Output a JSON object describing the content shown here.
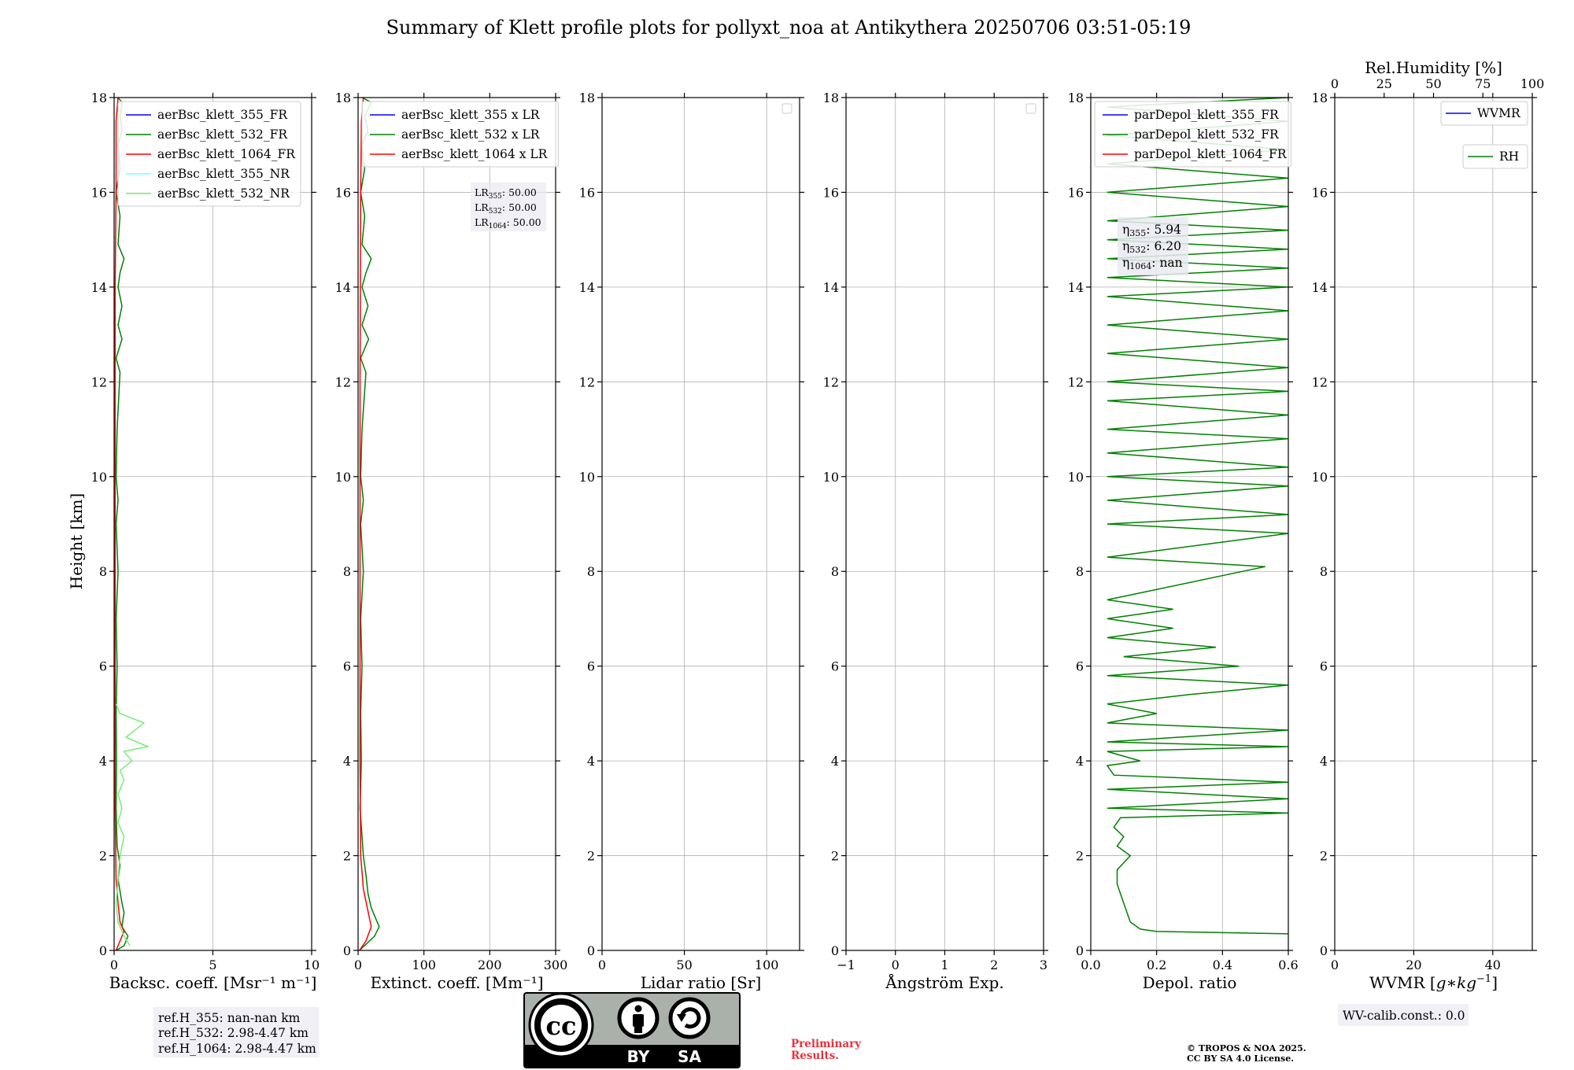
{
  "figure": {
    "title": "Summary of Klett profile plots for pollyxt_noa at Antikythera 20250706 03:51-05:19",
    "ylabel": "Height [km]"
  },
  "colors": {
    "blue": "#0000ff",
    "green": "#008000",
    "red": "#ff0000",
    "cyan": "#7fffff",
    "lightgreen": "#77ee77",
    "grid": "#b0b0b0"
  },
  "notes": {
    "ref_h": [
      "ref.H_355: nan-nan km",
      "ref.H_532: 2.98-4.47 km",
      "ref.H_1064: 2.98-4.47 km"
    ],
    "lr": [
      {
        "base": "LR",
        "sub": "355",
        "value": ": 50.00"
      },
      {
        "base": "LR",
        "sub": "532",
        "value": ": 50.00"
      },
      {
        "base": "LR",
        "sub": "1064",
        "value": ": 50.00"
      }
    ],
    "eta": [
      {
        "base": "η",
        "sub": "355",
        "value": ": 5.94"
      },
      {
        "base": "η",
        "sub": "532",
        "value": ": 6.20"
      },
      {
        "base": "η",
        "sub": "1064",
        "value": ": nan"
      }
    ],
    "wv_calib": "WV-calib.const.: 0.0",
    "preliminary": [
      "Preliminary",
      "Results."
    ],
    "copyright": [
      "© TROPOS & NOA 2025.",
      "CC BY SA 4.0 License."
    ]
  },
  "license_badge": {
    "left": "BY",
    "right": "SA",
    "logo": "cc"
  },
  "chart_data": [
    {
      "type": "line",
      "xlabel": "Backsc. coeff. [Msr⁻¹ m⁻¹]",
      "ylabel": "Height [km]",
      "xlim": [
        0,
        10
      ],
      "ylim": [
        0,
        18
      ],
      "xticks": [
        0,
        5,
        10
      ],
      "yticks": [
        0,
        2,
        4,
        6,
        8,
        10,
        12,
        14,
        16,
        18
      ],
      "grid": true,
      "legend_position": "top-left",
      "series": [
        {
          "name": "aerBsc_klett_355_FR",
          "color": "#0000ff",
          "points": []
        },
        {
          "name": "aerBsc_klett_532_FR",
          "color": "#008000",
          "points": [
            [
              0.1,
              0.0
            ],
            [
              0.5,
              0.1
            ],
            [
              0.7,
              0.3
            ],
            [
              0.4,
              0.5
            ],
            [
              0.5,
              0.8
            ],
            [
              0.4,
              1.0
            ],
            [
              0.2,
              1.5
            ],
            [
              0.3,
              1.8
            ],
            [
              0.15,
              2.2
            ],
            [
              0.1,
              3.0
            ],
            [
              0.12,
              4.0
            ],
            [
              0.1,
              5.0
            ],
            [
              0.15,
              6.0
            ],
            [
              0.1,
              7.0
            ],
            [
              0.2,
              8.0
            ],
            [
              0.1,
              9.0
            ],
            [
              0.2,
              9.5
            ],
            [
              0.1,
              10.0
            ],
            [
              0.15,
              11.0
            ],
            [
              0.3,
              12.2
            ],
            [
              0.1,
              12.5
            ],
            [
              0.4,
              12.9
            ],
            [
              0.2,
              13.2
            ],
            [
              0.4,
              13.6
            ],
            [
              0.2,
              14.0
            ],
            [
              0.3,
              14.3
            ],
            [
              0.5,
              14.6
            ],
            [
              0.2,
              14.9
            ],
            [
              0.3,
              15.5
            ],
            [
              0.1,
              16.0
            ],
            [
              0.3,
              16.5
            ],
            [
              0.2,
              17.0
            ],
            [
              0.4,
              17.3
            ],
            [
              0.3,
              17.6
            ],
            [
              0.4,
              17.9
            ],
            [
              0.2,
              18.0
            ]
          ]
        },
        {
          "name": "aerBsc_klett_1064_FR",
          "color": "#ff0000",
          "points": [
            [
              0.1,
              0.0
            ],
            [
              0.3,
              0.2
            ],
            [
              0.5,
              0.4
            ],
            [
              0.3,
              0.6
            ],
            [
              0.2,
              1.0
            ],
            [
              0.1,
              1.5
            ],
            [
              0.05,
              3.0
            ],
            [
              0.05,
              6.0
            ],
            [
              0.05,
              10.0
            ],
            [
              0.05,
              14.0
            ],
            [
              0.1,
              16.0
            ],
            [
              0.1,
              17.5
            ],
            [
              0.2,
              18.0
            ]
          ]
        },
        {
          "name": "aerBsc_klett_355_NR",
          "color": "#7fffff",
          "points": []
        },
        {
          "name": "aerBsc_klett_532_NR",
          "color": "#77ee77",
          "points": [
            [
              0.8,
              0.1
            ],
            [
              0.5,
              0.3
            ],
            [
              0.2,
              0.6
            ],
            [
              0.1,
              1.0
            ],
            [
              0.3,
              2.0
            ],
            [
              0.5,
              2.4
            ],
            [
              0.2,
              2.7
            ],
            [
              0.4,
              3.0
            ],
            [
              0.2,
              3.3
            ],
            [
              0.5,
              3.6
            ],
            [
              0.3,
              3.8
            ],
            [
              0.9,
              4.0
            ],
            [
              0.5,
              4.2
            ],
            [
              1.7,
              4.3
            ],
            [
              0.6,
              4.5
            ],
            [
              1.5,
              4.8
            ],
            [
              0.3,
              5.0
            ],
            [
              0.1,
              5.2
            ]
          ]
        }
      ]
    },
    {
      "type": "line",
      "xlabel": "Extinct. coeff. [Mm⁻¹]",
      "xlim": [
        0,
        300
      ],
      "ylim": [
        0,
        18
      ],
      "xticks": [
        0,
        100,
        200,
        300
      ],
      "yticks": [
        0,
        2,
        4,
        6,
        8,
        10,
        12,
        14,
        16,
        18
      ],
      "grid": true,
      "legend_position": "top-left",
      "series": [
        {
          "name": "aerBsc_klett_355 x LR",
          "color": "#0000ff",
          "points": []
        },
        {
          "name": "aerBsc_klett_532 x LR",
          "color": "#008000",
          "points": [
            [
              2,
              0.0
            ],
            [
              25,
              0.3
            ],
            [
              32,
              0.5
            ],
            [
              20,
              0.9
            ],
            [
              15,
              1.2
            ],
            [
              12,
              1.6
            ],
            [
              8,
              2.0
            ],
            [
              3,
              3.0
            ],
            [
              5,
              4.0
            ],
            [
              4,
              5.0
            ],
            [
              6,
              6.0
            ],
            [
              4,
              7.0
            ],
            [
              8,
              8.0
            ],
            [
              4,
              9.0
            ],
            [
              8,
              9.5
            ],
            [
              4,
              10.0
            ],
            [
              6,
              11.0
            ],
            [
              12,
              12.2
            ],
            [
              4,
              12.5
            ],
            [
              16,
              12.9
            ],
            [
              6,
              13.2
            ],
            [
              15,
              13.6
            ],
            [
              6,
              14.0
            ],
            [
              12,
              14.3
            ],
            [
              20,
              14.6
            ],
            [
              6,
              14.9
            ],
            [
              10,
              15.5
            ],
            [
              4,
              16.0
            ],
            [
              10,
              16.5
            ],
            [
              6,
              17.0
            ],
            [
              15,
              17.3
            ],
            [
              10,
              17.6
            ],
            [
              20,
              17.9
            ],
            [
              6,
              18.0
            ]
          ]
        },
        {
          "name": "aerBsc_klett_1064 x LR",
          "color": "#ff0000",
          "points": [
            [
              2,
              0.0
            ],
            [
              12,
              0.2
            ],
            [
              20,
              0.5
            ],
            [
              14,
              0.9
            ],
            [
              8,
              1.3
            ],
            [
              4,
              2.0
            ],
            [
              3,
              4.0
            ],
            [
              3,
              8.0
            ],
            [
              3,
              12.0
            ],
            [
              4,
              16.0
            ],
            [
              5,
              17.5
            ],
            [
              8,
              18.0
            ]
          ]
        }
      ]
    },
    {
      "type": "line",
      "xlabel": "Lidar ratio [Sr]",
      "xlim": [
        0,
        120
      ],
      "ylim": [
        0,
        18
      ],
      "xticks": [
        0,
        50,
        100
      ],
      "yticks": [
        0,
        2,
        4,
        6,
        8,
        10,
        12,
        14,
        16,
        18
      ],
      "grid": true,
      "legend_position": "top-right",
      "series": []
    },
    {
      "type": "line",
      "xlabel": "Ångström Exp.",
      "xlim": [
        -1,
        3
      ],
      "ylim": [
        0,
        18
      ],
      "xticks": [
        -1,
        0,
        1,
        2,
        3
      ],
      "yticks": [
        0,
        2,
        4,
        6,
        8,
        10,
        12,
        14,
        16,
        18
      ],
      "grid": true,
      "legend_position": "top-right",
      "series": []
    },
    {
      "type": "line",
      "xlabel": "Depol. ratio",
      "xlim": [
        0,
        0.6
      ],
      "ylim": [
        0,
        18
      ],
      "xticks": [
        0.0,
        0.2,
        0.4,
        0.6
      ],
      "yticks": [
        0,
        2,
        4,
        6,
        8,
        10,
        12,
        14,
        16,
        18
      ],
      "grid": true,
      "legend_position": "top-left",
      "series": [
        {
          "name": "parDepol_klett_355_FR",
          "color": "#0000ff",
          "points": []
        },
        {
          "name": "parDepol_klett_532_FR",
          "color": "#008000",
          "points": [
            [
              0.6,
              0.35
            ],
            [
              0.2,
              0.4
            ],
            [
              0.15,
              0.45
            ],
            [
              0.12,
              0.6
            ],
            [
              0.1,
              1.0
            ],
            [
              0.08,
              1.4
            ],
            [
              0.08,
              1.7
            ],
            [
              0.12,
              2.0
            ],
            [
              0.08,
              2.2
            ],
            [
              0.1,
              2.4
            ],
            [
              0.07,
              2.6
            ],
            [
              0.09,
              2.8
            ],
            [
              0.6,
              2.9
            ],
            [
              0.05,
              3.0
            ],
            [
              0.6,
              3.2
            ],
            [
              0.05,
              3.4
            ],
            [
              0.6,
              3.55
            ],
            [
              0.07,
              3.7
            ],
            [
              0.05,
              3.9
            ],
            [
              0.15,
              4.0
            ],
            [
              0.05,
              4.2
            ],
            [
              0.6,
              4.3
            ],
            [
              0.05,
              4.4
            ],
            [
              0.6,
              4.65
            ],
            [
              0.05,
              4.8
            ],
            [
              0.2,
              5.0
            ],
            [
              0.05,
              5.2
            ],
            [
              0.3,
              5.4
            ],
            [
              0.6,
              5.6
            ],
            [
              0.05,
              5.8
            ],
            [
              0.45,
              6.0
            ],
            [
              0.1,
              6.2
            ],
            [
              0.38,
              6.4
            ],
            [
              0.05,
              6.6
            ],
            [
              0.25,
              6.8
            ],
            [
              0.05,
              7.0
            ],
            [
              0.25,
              7.2
            ],
            [
              0.05,
              7.4
            ],
            [
              0.53,
              8.1
            ],
            [
              0.05,
              8.3
            ],
            [
              0.6,
              8.8
            ],
            [
              0.05,
              9.0
            ],
            [
              0.6,
              9.2
            ],
            [
              0.05,
              9.5
            ],
            [
              0.6,
              9.8
            ],
            [
              0.05,
              10.0
            ],
            [
              0.6,
              10.2
            ],
            [
              0.05,
              10.5
            ],
            [
              0.6,
              10.8
            ],
            [
              0.05,
              11.0
            ],
            [
              0.6,
              11.3
            ],
            [
              0.05,
              11.6
            ],
            [
              0.6,
              11.8
            ],
            [
              0.05,
              12.0
            ],
            [
              0.6,
              12.3
            ],
            [
              0.05,
              12.6
            ],
            [
              0.6,
              12.9
            ],
            [
              0.05,
              13.2
            ],
            [
              0.6,
              13.5
            ],
            [
              0.05,
              13.8
            ],
            [
              0.6,
              14.0
            ],
            [
              0.05,
              14.2
            ],
            [
              0.6,
              14.4
            ],
            [
              0.05,
              14.6
            ],
            [
              0.6,
              14.8
            ],
            [
              0.05,
              15.0
            ],
            [
              0.6,
              15.2
            ],
            [
              0.05,
              15.4
            ],
            [
              0.6,
              15.7
            ],
            [
              0.05,
              16.0
            ],
            [
              0.6,
              16.3
            ],
            [
              0.05,
              16.6
            ],
            [
              0.6,
              16.9
            ],
            [
              0.05,
              17.2
            ],
            [
              0.6,
              17.5
            ],
            [
              0.05,
              17.8
            ],
            [
              0.6,
              18.0
            ]
          ]
        },
        {
          "name": "parDepol_klett_1064_FR",
          "color": "#ff0000",
          "points": []
        }
      ]
    },
    {
      "type": "line",
      "xlabel": "WVMR [$g*kg^{-1}$]",
      "xlabel_display": {
        "pre": "WVMR [",
        "math": "g∗kg",
        "sup": "−1",
        "post": "]"
      },
      "x2label": "Rel.Humidity [%]",
      "xlim": [
        0,
        50
      ],
      "x2lim": [
        0,
        100
      ],
      "ylim": [
        0,
        18
      ],
      "xticks": [
        0,
        20,
        40
      ],
      "x2ticks": [
        0,
        25,
        50,
        75,
        100
      ],
      "yticks": [
        0,
        2,
        4,
        6,
        8,
        10,
        12,
        14,
        16,
        18
      ],
      "grid": true,
      "legend_position": "top-right",
      "series": [
        {
          "name": "WVMR",
          "color": "#0000ff",
          "points": []
        },
        {
          "name": "RH",
          "color": "#008000",
          "points": []
        }
      ]
    }
  ]
}
